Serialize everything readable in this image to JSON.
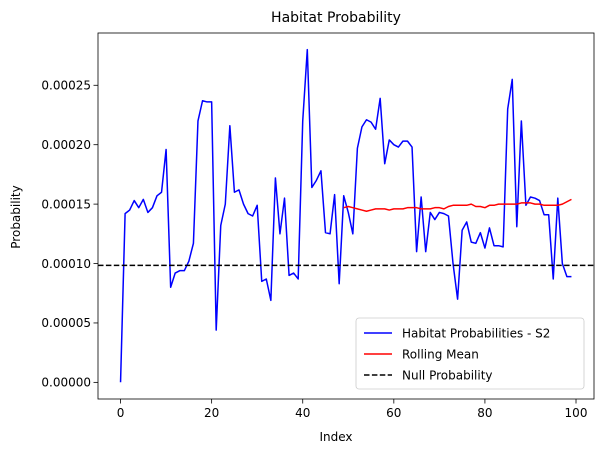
{
  "chart_data": {
    "type": "line",
    "title": "Habitat Probability",
    "xlabel": "Index",
    "ylabel": "Probability",
    "xlim": [
      -4.95,
      103.95
    ],
    "ylim": [
      -1.4e-05,
      0.000294
    ],
    "xticks": [
      0,
      20,
      40,
      60,
      80,
      100
    ],
    "xtick_labels": [
      "0",
      "20",
      "40",
      "60",
      "80",
      "100"
    ],
    "yticks": [
      0,
      5e-05,
      0.0001,
      0.00015,
      0.0002,
      0.00025
    ],
    "ytick_labels": [
      "0.00000",
      "0.00005",
      "0.00010",
      "0.00015",
      "0.00020",
      "0.00025"
    ],
    "grid": false,
    "legend_position": "lower-right",
    "series": [
      {
        "name": "Habitat Probabilities - S2",
        "color": "#0000ff",
        "style": "solid",
        "x": [
          0,
          1,
          2,
          3,
          4,
          5,
          6,
          7,
          8,
          9,
          10,
          11,
          12,
          13,
          14,
          15,
          16,
          17,
          18,
          19,
          20,
          21,
          22,
          23,
          24,
          25,
          26,
          27,
          28,
          29,
          30,
          31,
          32,
          33,
          34,
          35,
          36,
          37,
          38,
          39,
          40,
          41,
          42,
          43,
          44,
          45,
          46,
          47,
          48,
          49,
          50,
          51,
          52,
          53,
          54,
          55,
          56,
          57,
          58,
          59,
          60,
          61,
          62,
          63,
          64,
          65,
          66,
          67,
          68,
          69,
          70,
          71,
          72,
          73,
          74,
          75,
          76,
          77,
          78,
          79,
          80,
          81,
          82,
          83,
          84,
          85,
          86,
          87,
          88,
          89,
          90,
          91,
          92,
          93,
          94,
          95,
          96,
          97,
          98,
          99
        ],
        "values": [
          1e-07,
          0.000142,
          0.000145,
          0.000153,
          0.000147,
          0.000154,
          0.000143,
          0.000147,
          0.000157,
          0.00016,
          0.000196,
          8e-05,
          9.2e-05,
          9.4e-05,
          9.4e-05,
          0.000102,
          0.000117,
          0.00022,
          0.000237,
          0.000236,
          0.000236,
          4.4e-05,
          0.000132,
          0.00015,
          0.000216,
          0.00016,
          0.000162,
          0.00015,
          0.000142,
          0.00014,
          0.000149,
          8.5e-05,
          8.7e-05,
          6.9e-05,
          0.000172,
          0.000125,
          0.000155,
          9e-05,
          9.2e-05,
          8.7e-05,
          0.00022,
          0.00028,
          0.000164,
          0.00017,
          0.000178,
          0.000126,
          0.000125,
          0.000158,
          8.3e-05,
          0.000157,
          0.000143,
          0.000125,
          0.000197,
          0.000215,
          0.000221,
          0.000219,
          0.000213,
          0.000239,
          0.000184,
          0.000204,
          0.0002,
          0.000198,
          0.000203,
          0.000203,
          0.000198,
          0.00011,
          0.000156,
          0.00011,
          0.000143,
          0.000137,
          0.000143,
          0.000142,
          0.00014,
          0.0001,
          7e-05,
          0.000128,
          0.000135,
          0.000118,
          0.000117,
          0.000126,
          0.000113,
          0.00013,
          0.000115,
          0.000115,
          0.000114,
          0.00023,
          0.000255,
          0.000131,
          0.00022,
          0.000149,
          0.000156,
          0.000155,
          0.000153,
          0.000141,
          0.000141,
          8.7e-05,
          0.000155,
          0.0001,
          8.9e-05,
          8.9e-05
        ]
      },
      {
        "name": "Rolling Mean",
        "color": "#ff0000",
        "style": "solid",
        "x": [
          49,
          50,
          51,
          52,
          53,
          54,
          55,
          56,
          57,
          58,
          59,
          60,
          61,
          62,
          63,
          64,
          65,
          66,
          67,
          68,
          69,
          70,
          71,
          72,
          73,
          74,
          75,
          76,
          77,
          78,
          79,
          80,
          81,
          82,
          83,
          84,
          85,
          86,
          87,
          88,
          89,
          90,
          91,
          92,
          93,
          94,
          95,
          96,
          97,
          98,
          99
        ],
        "values": [
          0.000147,
          0.000148,
          0.000147,
          0.000146,
          0.000145,
          0.000144,
          0.000145,
          0.000146,
          0.000146,
          0.000146,
          0.000145,
          0.000146,
          0.000146,
          0.000146,
          0.000147,
          0.000147,
          0.000147,
          0.000146,
          0.000146,
          0.000146,
          0.000147,
          0.000147,
          0.000146,
          0.000148,
          0.000149,
          0.000149,
          0.000149,
          0.000149,
          0.00015,
          0.000148,
          0.000148,
          0.000147,
          0.000149,
          0.000149,
          0.00015,
          0.00015,
          0.00015,
          0.00015,
          0.00015,
          0.000151,
          0.000151,
          0.000151,
          0.00015,
          0.00015,
          0.000149,
          0.000149,
          0.000149,
          0.000149,
          0.00015,
          0.000152,
          0.000154
        ]
      },
      {
        "name": "Null Probability",
        "color": "#000000",
        "style": "dashed",
        "hline": 9.85e-05
      }
    ]
  }
}
